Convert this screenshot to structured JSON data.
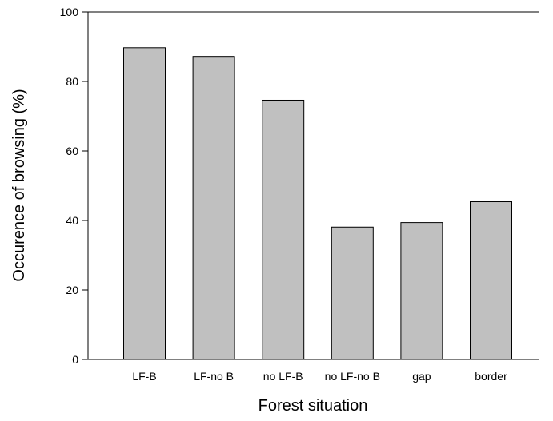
{
  "chart_data": {
    "type": "bar",
    "title": "",
    "xlabel": "Forest situation",
    "ylabel": "Occurence of browsing (%)",
    "categories": [
      "LF-B",
      "LF-no B",
      "no LF-B",
      "no LF-no B",
      "gap",
      "border"
    ],
    "values": [
      89.7,
      87.2,
      74.6,
      38.1,
      39.4,
      45.4
    ],
    "ylim": [
      0,
      100
    ],
    "yticks": [
      0,
      20,
      40,
      60,
      80,
      100
    ],
    "ytick_labels": [
      "0",
      "20",
      "40",
      "60",
      "80",
      "100"
    ],
    "grid": false,
    "legend": "none",
    "colors": {
      "bar_fill": "#c0c0c0",
      "bar_stroke": "#000000",
      "axis": "#000000"
    }
  }
}
